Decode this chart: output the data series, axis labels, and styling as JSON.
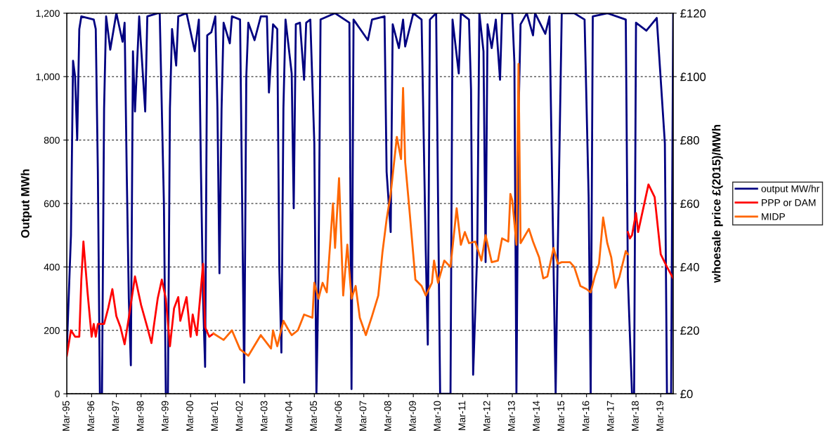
{
  "chart_data": {
    "type": "line",
    "ylabel": "Output MWh",
    "y2label": "whoesale price £(2015)/MWh",
    "xlim": [
      "1995-03",
      "2019-09"
    ],
    "xticks": [
      {
        "value": "1995-03",
        "label": "Mar-95"
      },
      {
        "value": "1996-03",
        "label": "Mar-96"
      },
      {
        "value": "1997-03",
        "label": "Mar-97"
      },
      {
        "value": "1998-03",
        "label": "Mar-98"
      },
      {
        "value": "1999-03",
        "label": "Mar-99"
      },
      {
        "value": "2000-03",
        "label": "Mar-00"
      },
      {
        "value": "2001-03",
        "label": "Mar-01"
      },
      {
        "value": "2002-03",
        "label": "Mar-02"
      },
      {
        "value": "2003-03",
        "label": "Mar-03"
      },
      {
        "value": "2004-03",
        "label": "Mar-04"
      },
      {
        "value": "2005-03",
        "label": "Mar-05"
      },
      {
        "value": "2006-03",
        "label": "Mar-06"
      },
      {
        "value": "2007-03",
        "label": "Mar-07"
      },
      {
        "value": "2008-03",
        "label": "Mar-08"
      },
      {
        "value": "2009-03",
        "label": "Mar-09"
      },
      {
        "value": "2010-03",
        "label": "Mar-10"
      },
      {
        "value": "2011-03",
        "label": "Mar-11"
      },
      {
        "value": "2012-03",
        "label": "Mar-12"
      },
      {
        "value": "2013-03",
        "label": "Mar-13"
      },
      {
        "value": "2014-03",
        "label": "Mar-14"
      },
      {
        "value": "2015-03",
        "label": "Mar-15"
      },
      {
        "value": "2016-03",
        "label": "Mar-16"
      },
      {
        "value": "2017-03",
        "label": "Mar-17"
      },
      {
        "value": "2018-03",
        "label": "Mar-18"
      },
      {
        "value": "2019-03",
        "label": "Mar-19"
      }
    ],
    "ylim": [
      0,
      1200
    ],
    "yticks": [
      0,
      200,
      400,
      600,
      800,
      {
        "value": 1000,
        "label": "1,000"
      },
      {
        "value": 1200,
        "label": "1,200"
      }
    ],
    "y2lim": [
      0,
      120
    ],
    "y2ticks": [
      {
        "value": 0,
        "label": "£0"
      },
      {
        "value": 20,
        "label": "£20"
      },
      {
        "value": 40,
        "label": "£40"
      },
      {
        "value": 60,
        "label": "£60"
      },
      {
        "value": 80,
        "label": "£80"
      },
      {
        "value": 100,
        "label": "£100"
      },
      {
        "value": 120,
        "label": "£120"
      }
    ],
    "grid": "y",
    "legend": "right",
    "series": [
      {
        "name": "output MW/hr",
        "color": "#000080",
        "x": [
          "1995-03",
          "1995-05",
          "1995-06",
          "1995-07",
          "1995-08",
          "1995-09",
          "1995-10",
          "1996-04",
          "1996-05",
          "1996-06",
          "1996-07",
          "1996-08",
          "1996-09",
          "1996-10",
          "1996-12",
          "1997-03",
          "1997-06",
          "1997-07",
          "1997-08",
          "1997-09",
          "1997-10",
          "1997-11",
          "1997-12",
          "1998-01",
          "1998-02",
          "1998-05",
          "1998-06",
          "1998-11",
          "1998-12",
          "1999-02",
          "1999-03",
          "1999-04",
          "1999-05",
          "1999-06",
          "1999-08",
          "1999-09",
          "2000-01",
          "2000-05",
          "2000-07",
          "2000-08",
          "2000-09",
          "2000-10",
          "2000-11",
          "2001-01",
          "2001-03",
          "2001-04",
          "2001-05",
          "2001-06",
          "2001-07",
          "2001-10",
          "2001-11",
          "2002-03",
          "2002-04",
          "2002-05",
          "2002-06",
          "2002-07",
          "2002-10",
          "2003-01",
          "2003-04",
          "2003-05",
          "2003-07",
          "2003-09",
          "2003-10",
          "2003-11",
          "2003-12",
          "2004-01",
          "2004-04",
          "2004-05",
          "2004-06",
          "2004-08",
          "2004-10",
          "2004-11",
          "2005-01",
          "2005-03",
          "2005-04",
          "2005-05",
          "2005-06",
          "2006-01",
          "2006-08",
          "2006-09",
          "2006-10",
          "2007-05",
          "2007-07",
          "2008-01",
          "2008-02",
          "2008-04",
          "2008-05",
          "2008-08",
          "2008-10",
          "2008-11",
          "2009-03",
          "2009-07",
          "2009-09",
          "2009-10",
          "2009-11",
          "2010-02",
          "2010-03",
          "2010-04",
          "2010-09",
          "2010-10",
          "2011-01",
          "2011-02",
          "2011-06",
          "2011-07",
          "2011-08",
          "2011-10",
          "2011-11",
          "2012-01",
          "2012-02",
          "2012-03",
          "2012-05",
          "2012-07",
          "2012-09",
          "2012-10",
          "2013-03",
          "2013-04",
          "2013-05",
          "2013-06",
          "2013-07",
          "2013-10",
          "2014-01",
          "2014-02",
          "2014-07",
          "2014-09",
          "2014-10",
          "2014-12",
          "2015-01",
          "2015-03",
          "2015-09",
          "2016-02",
          "2016-04",
          "2016-05",
          "2016-06",
          "2017-01",
          "2017-10",
          "2017-11",
          "2018-01",
          "2018-02",
          "2018-03",
          "2018-08",
          "2019-01",
          "2019-05",
          "2019-06",
          "2019-08",
          "2019-09"
        ],
        "values": [
          140,
          500,
          1050,
          1000,
          800,
          1150,
          1190,
          1180,
          1150,
          700,
          0,
          0,
          900,
          1190,
          1085,
          1200,
          1110,
          1170,
          700,
          300,
          90,
          1080,
          890,
          1040,
          1190,
          890,
          1190,
          1200,
          1200,
          600,
          0,
          0,
          900,
          1150,
          1035,
          1190,
          1200,
          1080,
          1180,
          700,
          300,
          85,
          1130,
          1140,
          1190,
          900,
          380,
          900,
          1170,
          1105,
          1190,
          1180,
          600,
          35,
          1000,
          1170,
          1115,
          1190,
          1190,
          950,
          1165,
          1150,
          400,
          130,
          900,
          1180,
          1010,
          585,
          1165,
          1170,
          990,
          1170,
          1180,
          790,
          0,
          360,
          1180,
          1200,
          1170,
          15,
          1180,
          1115,
          1180,
          1190,
          700,
          510,
          1165,
          1090,
          1180,
          1095,
          1200,
          1180,
          450,
          155,
          1180,
          1200,
          620,
          0,
          0,
          1180,
          1010,
          1200,
          1180,
          960,
          60,
          450,
          1200,
          1080,
          415,
          1165,
          1090,
          1180,
          990,
          1200,
          1200,
          1045,
          0,
          875,
          1165,
          1200,
          1130,
          1200,
          1135,
          1190,
          790,
          0,
          450,
          1200,
          1200,
          1180,
          620,
          0,
          1190,
          1200,
          1180,
          365,
          0,
          0,
          1170,
          1145,
          1185,
          790,
          0,
          0,
          1200
        ]
      },
      {
        "name": "PPP or DAM",
        "color": "#ff0000",
        "axis": "y2",
        "x": [
          "1995-03",
          "1995-05",
          "1995-07",
          "1995-09",
          "1995-10",
          "1995-11",
          "1996-01",
          "1996-03",
          "1996-04",
          "1996-05",
          "1996-06",
          "1996-09",
          "1996-11",
          "1997-01",
          "1997-03",
          "1997-05",
          "1997-07",
          "1997-09",
          "1997-12",
          "1998-03",
          "1998-06",
          "1998-08",
          "1998-11",
          "1999-01",
          "1999-03",
          "1999-05",
          "1999-07",
          "1999-09",
          "1999-10",
          "2000-01",
          "2000-03",
          "2000-04",
          "2000-06",
          "2000-09",
          "2000-10",
          "2000-12",
          "2001-02",
          "2009-01",
          "2017-11",
          "2017-12",
          "2018-01",
          "2018-03",
          "2018-04",
          "2018-09",
          "2018-12",
          "2019-03",
          "2019-06",
          "2019-09"
        ],
        "values": [
          12,
          20,
          18,
          18,
          36,
          48,
          32,
          18,
          22,
          18,
          22,
          22,
          27,
          33,
          24.5,
          21,
          15.6,
          24,
          37,
          28,
          21,
          16,
          30,
          36,
          30,
          15,
          27,
          30.5,
          23,
          30.5,
          18,
          25,
          18.5,
          41,
          21,
          18,
          19,
          null,
          51,
          49,
          50,
          57,
          51,
          66,
          62,
          44,
          40,
          36.4
        ]
      },
      {
        "name": "MIDP",
        "color": "#ff6600",
        "axis": "y2",
        "x": [
          "2001-02",
          "2001-07",
          "2001-11",
          "2002-03",
          "2002-07",
          "2003-01",
          "2003-06",
          "2003-07",
          "2003-09",
          "2003-12",
          "2004-03",
          "2004-04",
          "2004-07",
          "2004-10",
          "2005-02",
          "2005-03",
          "2005-05",
          "2005-07",
          "2005-09",
          "2005-12",
          "2006-01",
          "2006-03",
          "2006-05",
          "2006-07",
          "2006-09",
          "2006-11",
          "2007-01",
          "2007-04",
          "2007-07",
          "2007-10",
          "2007-12",
          "2008-02",
          "2008-04",
          "2008-07",
          "2008-09",
          "2008-10",
          "2008-11",
          "2009-01",
          "2009-04",
          "2009-07",
          "2009-09",
          "2009-12",
          "2010-01",
          "2010-03",
          "2010-06",
          "2010-09",
          "2010-12",
          "2011-02",
          "2011-04",
          "2011-06",
          "2011-09",
          "2011-12",
          "2012-02",
          "2012-05",
          "2012-08",
          "2012-10",
          "2013-01",
          "2013-02",
          "2013-03",
          "2013-05",
          "2013-06",
          "2013-07",
          "2013-11",
          "2014-01",
          "2014-04",
          "2014-06",
          "2014-08",
          "2014-11",
          "2015-01",
          "2015-03",
          "2015-07",
          "2015-09",
          "2015-12",
          "2016-03",
          "2016-05",
          "2016-07",
          "2016-09",
          "2016-11",
          "2017-01",
          "2017-03",
          "2017-05",
          "2017-07",
          "2017-10",
          "2017-11"
        ],
        "values": [
          19,
          17,
          20,
          14,
          12,
          18.5,
          14.3,
          20,
          15,
          23,
          19.5,
          18.5,
          20,
          25,
          24,
          35,
          30,
          35,
          32,
          60,
          46,
          68,
          31,
          47,
          30,
          34,
          24,
          18.5,
          24.5,
          31,
          44.5,
          55,
          63,
          81,
          74,
          96.4,
          73,
          58.5,
          36,
          34,
          31,
          35,
          42,
          35,
          42,
          40,
          58.5,
          47,
          51,
          47.5,
          48,
          42,
          50,
          41.5,
          42,
          49,
          48,
          63,
          61,
          47,
          104,
          47.5,
          52,
          48,
          43,
          36.4,
          37,
          46,
          41,
          41.5,
          41.5,
          40,
          34,
          33,
          32,
          37,
          41,
          55.6,
          47.5,
          43,
          33.4,
          37,
          45,
          44
        ]
      }
    ]
  }
}
